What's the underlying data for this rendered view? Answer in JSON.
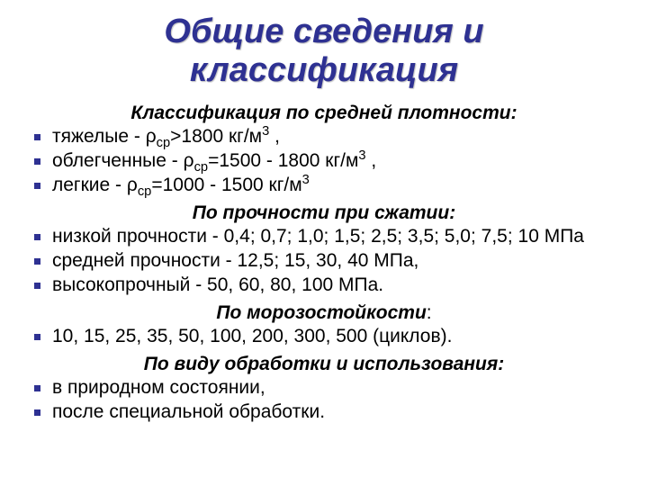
{
  "colors": {
    "title": "#2e3192",
    "bullet": "#2e3192",
    "body": "#000000",
    "background": "#ffffff"
  },
  "typography": {
    "title_fontsize": 38,
    "subheading_fontsize": 21,
    "body_fontsize": 21,
    "font_family": "Arial"
  },
  "title_line1": "Общие сведения и",
  "title_line2": "классификация",
  "sections": [
    {
      "heading": "Классификация по средней плотности:",
      "items": [
        {
          "pre": "тяжелые - ρ",
          "sub": "ср",
          "mid": ">1800 кг/м",
          "sup": "3",
          "post": " ,"
        },
        {
          "pre": "облегченные - ρ",
          "sub": "ср",
          "mid": "=1500 - 1800 кг/м",
          "sup": "3",
          "post": " ,"
        },
        {
          "pre": "легкие - ρ",
          "sub": "ср",
          "mid": "=1000 - 1500 кг/м",
          "sup": "3",
          "post": ""
        }
      ]
    },
    {
      "heading": "По прочности при сжатии:",
      "items": [
        {
          "pre": "низкой прочности - 0,4; 0,7; 1,0; 1,5; 2,5; 3,5; 5,0; 7,5; 10 МПа",
          "sub": "",
          "mid": "",
          "sup": "",
          "post": ""
        },
        {
          "pre": "средней прочности - 12,5; 15, 30, 40 МПа,",
          "sub": "",
          "mid": "",
          "sup": "",
          "post": ""
        },
        {
          "pre": "высокопрочный - 50, 60, 80, 100 МПа.",
          "sub": "",
          "mid": "",
          "sup": "",
          "post": ""
        }
      ]
    },
    {
      "heading": "По морозостойкости:",
      "heading_italic_only_prefix": true,
      "items": [
        {
          "pre": "10, 15, 25, 35, 50, 100, 200, 300, 500 (циклов).",
          "sub": "",
          "mid": "",
          "sup": "",
          "post": ""
        }
      ]
    },
    {
      "heading": "По виду обработки и использования:",
      "items": [
        {
          "pre": "в природном состоянии,",
          "sub": "",
          "mid": "",
          "sup": "",
          "post": ""
        },
        {
          "pre": "после специальной обработки.",
          "sub": "",
          "mid": "",
          "sup": "",
          "post": ""
        }
      ]
    }
  ]
}
